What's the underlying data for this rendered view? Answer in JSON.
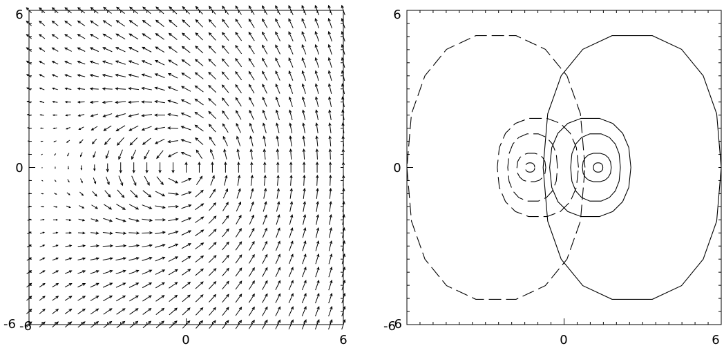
{
  "chart_data": [
    {
      "type": "vector_field",
      "title": "",
      "xlabel": "",
      "ylabel": "",
      "xlim": [
        -6,
        6
      ],
      "ylim": [
        -6,
        6
      ],
      "x_ticks": [
        "-6",
        "0",
        "6"
      ],
      "y_ticks": [
        "-6",
        "0",
        "6"
      ],
      "grid": false,
      "field": {
        "description_of_values": "unit-length arrows on a 25x25 grid from -6 to 6 (step 0.5); background field points up (+y), superposed vortex centred at (0,0) rotating counter-clockwise",
        "grid_n": 25,
        "background": [
          0,
          1
        ],
        "vortex_center": [
          0,
          0
        ],
        "vortex_strength": 1.0,
        "vortex_core": 1.0
      }
    },
    {
      "type": "contour",
      "title": "",
      "xlabel": "",
      "ylabel": "",
      "xlim": [
        -6,
        6
      ],
      "ylim": [
        -6,
        6
      ],
      "x_ticks": [
        "-6",
        "0",
        "6"
      ],
      "y_ticks": [
        "-6",
        "0",
        "6"
      ],
      "grid": false,
      "negative_linestyle": "dashed",
      "positive_linestyle": "solid",
      "contours": [
        {
          "level": "positive",
          "center": [
            1.3,
            0.0
          ],
          "rx": 0.18,
          "ry": 0.18
        },
        {
          "level": "positive",
          "center": [
            1.25,
            0.0
          ],
          "rx": 0.55,
          "ry": 0.55
        },
        {
          "level": "positive",
          "center": [
            1.2,
            0.0
          ],
          "rx": 0.95,
          "ry": 1.3
        },
        {
          "level": "positive",
          "center": [
            1.0,
            0.0
          ],
          "rx": 1.55,
          "ry": 1.9
        },
        {
          "level": "positive",
          "center": [
            2.6,
            0.0
          ],
          "rx": 3.4,
          "ry": 5.1
        },
        {
          "level": "negative",
          "center": [
            -1.3,
            0.0
          ],
          "rx": 0.18,
          "ry": 0.18
        },
        {
          "level": "negative",
          "center": [
            -1.25,
            0.0
          ],
          "rx": 0.55,
          "ry": 0.55
        },
        {
          "level": "negative",
          "center": [
            -1.2,
            0.0
          ],
          "rx": 0.95,
          "ry": 1.3
        },
        {
          "level": "negative",
          "center": [
            -1.0,
            0.0
          ],
          "rx": 1.55,
          "ry": 1.9
        },
        {
          "level": "negative",
          "center": [
            -2.6,
            0.0
          ],
          "rx": 3.4,
          "ry": 5.1
        }
      ]
    }
  ]
}
